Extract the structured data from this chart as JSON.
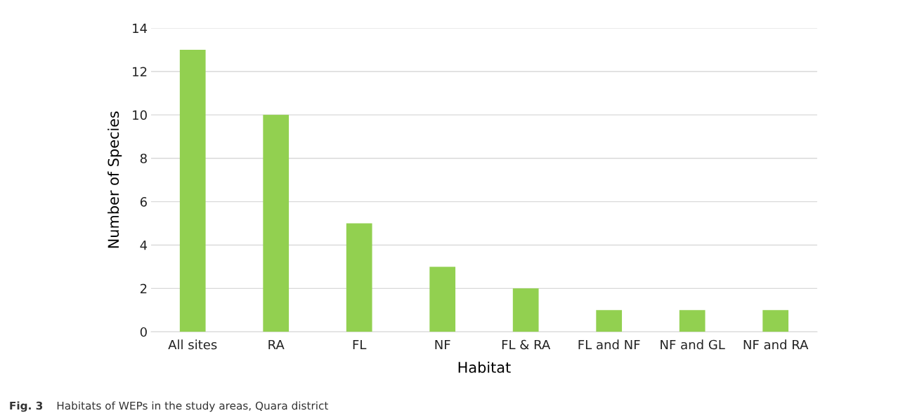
{
  "chart_data": {
    "type": "bar",
    "xlabel": "Habitat",
    "ylabel": "Number of Species",
    "categories": [
      "All sites",
      "RA",
      "FL",
      "NF",
      "FL & RA",
      "FL and NF",
      "NF and GL",
      "NF and RA"
    ],
    "values": [
      13,
      10,
      5,
      3,
      2,
      1,
      1,
      1
    ],
    "color": "#92d050",
    "ylim": [
      0,
      14
    ],
    "yticks": [
      0,
      2,
      4,
      6,
      8,
      10,
      12,
      14
    ],
    "grid": "y",
    "legend": false,
    "annotations": [
      "Fig. 3",
      "Habitats of WEPs in the study areas, Quara district"
    ]
  }
}
